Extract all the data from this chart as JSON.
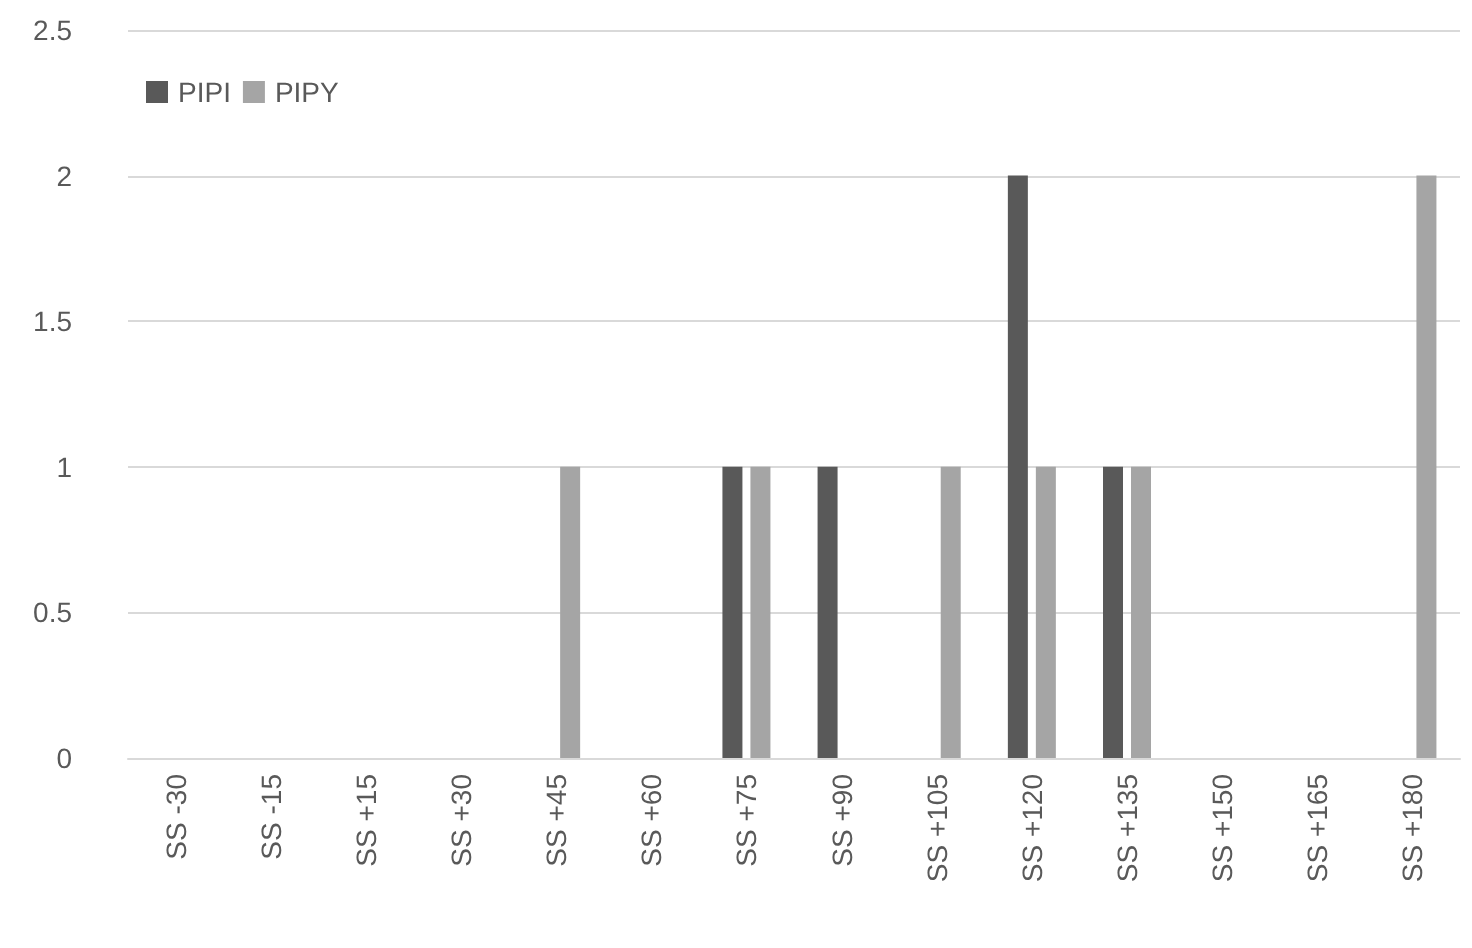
{
  "chart_data": {
    "type": "bar",
    "categories": [
      "SS -30",
      "SS -15",
      "SS +15",
      "SS +30",
      "SS +45",
      "SS +60",
      "SS +75",
      "SS +90",
      "SS +105",
      "SS +120",
      "SS +135",
      "SS +150",
      "SS +165",
      "SS +180"
    ],
    "series": [
      {
        "name": "PIPI",
        "color": "#595959",
        "values": [
          0,
          0,
          0,
          0,
          0,
          0,
          1,
          1,
          0,
          2,
          1,
          0,
          0,
          0
        ]
      },
      {
        "name": "PIPY",
        "color": "#a5a5a5",
        "values": [
          0,
          0,
          0,
          0,
          1,
          0,
          1,
          0,
          1,
          1,
          1,
          0,
          0,
          2
        ]
      }
    ],
    "ylim": [
      0,
      2.5
    ],
    "yticks": [
      0,
      0.5,
      1,
      1.5,
      2,
      2.5
    ],
    "grid": "y",
    "legend": "top left"
  }
}
